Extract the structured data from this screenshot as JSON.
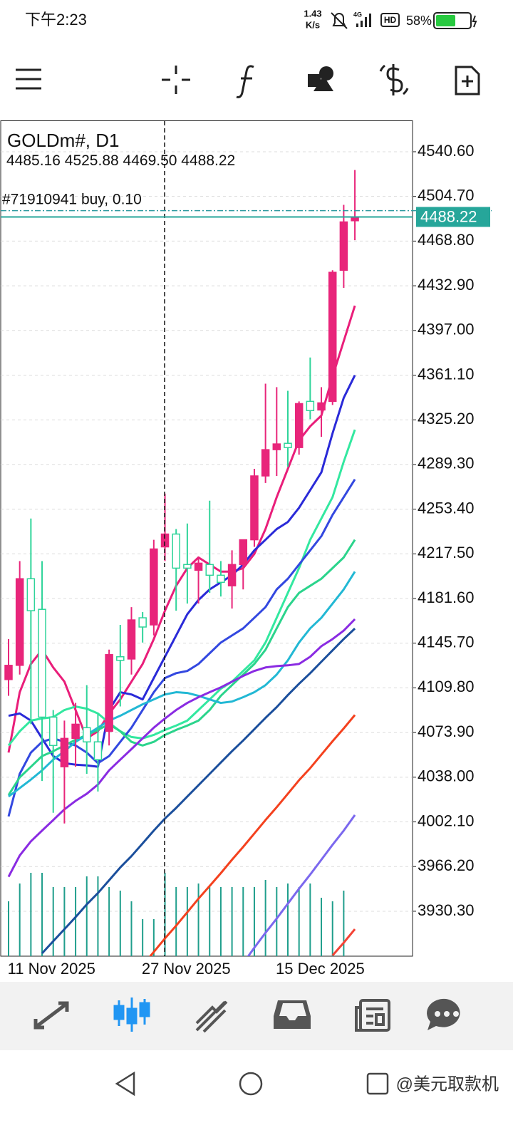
{
  "status_bar": {
    "time": "下午2:23",
    "net_speed": "1.43",
    "net_unit": "K/s",
    "battery": "58%"
  },
  "watermark": "@美元取款机",
  "chart_data": {
    "type": "candlestick",
    "title": "GOLDm#, D1",
    "readout": [
      4485.16,
      4525.88,
      {
        "value": 4469.5,
        "label": "4469.50"
      },
      4488.22
    ],
    "order": {
      "label": "#71910941 buy, 0.10",
      "price": 4493.3,
      "color": "#2e9aa0"
    },
    "last_price": 4488.22,
    "price_color": "#26a69a",
    "categories": [
      null,
      "11 Nov 2025",
      null,
      null,
      null,
      null,
      null,
      null,
      null,
      null,
      null,
      null,
      null,
      "27 Nov 2025",
      null,
      null,
      null,
      null,
      null,
      null,
      null,
      null,
      null,
      null,
      null,
      "15 Dec 2025",
      null,
      null,
      null,
      null,
      null,
      null
    ],
    "open": [
      4116.5,
      4127.9,
      4197.5,
      4172.9,
      4086.3,
      4046.4,
      4069.2,
      4077.8,
      4066.4,
      4074.9,
      4134.8,
      4133.0,
      4166.1,
      4160.4,
      4223.1,
      4233.4,
      4208.9,
      4204.3,
      4208.9,
      4200.3,
      4191.8,
      4208.9,
      4228.8,
      4280.1,
      4301.2,
      4306.3,
      4302.9,
      4340.0,
      4333.1,
      4340.0,
      4445.4,
      4485.16
    ],
    "high": [
      4149.0,
      4211.7,
      4245.9,
      4211.7,
      4092.0,
      4083.5,
      4097.7,
      4112.0,
      4089.2,
      4140.5,
      4160.4,
      4174.7,
      4170.7,
      4228.8,
      4265.9,
      4237.4,
      4241.9,
      4214.6,
      4260.2,
      4211.7,
      4220.3,
      4228.8,
      4285.8,
      4354.2,
      4351.4,
      4348.5,
      4340.0,
      4375.3,
      4351.4,
      4445.4,
      4497.9,
      4525.88
    ],
    "low": [
      4103.4,
      4120.5,
      4080.6,
      4035.0,
      4009.4,
      4000.8,
      4046.4,
      4040.7,
      4026.5,
      4063.5,
      4094.9,
      4120.5,
      4146.2,
      4151.9,
      4211.7,
      4171.8,
      4177.5,
      4177.5,
      4186.1,
      4183.2,
      4173.5,
      4188.9,
      4223.1,
      4274.4,
      4280.1,
      4287.5,
      4297.2,
      4325.7,
      4311.5,
      4337.1,
      4431.2,
      4469.5
    ],
    "close": [
      4127.9,
      4197.5,
      4171.8,
      4086.3,
      4063.5,
      4069.2,
      4080.6,
      4066.4,
      4052.1,
      4136.5,
      4131.9,
      4164.4,
      4158.7,
      4221.4,
      4233.4,
      4206.0,
      4206.0,
      4210.0,
      4200.3,
      4194.6,
      4208.9,
      4228.8,
      4280.1,
      4301.2,
      4305.8,
      4302.9,
      4338.2,
      4332.6,
      4338.8,
      4443.7,
      4484.2,
      4488.22
    ],
    "up_color": "#e8257a",
    "down_color": "#2fd49a",
    "series": [
      {
        "color": "#e91e7a",
        "values": [
          4057.8,
          4106.3,
          4129.0,
          4140.4,
          4126.2,
          4114.8,
          4092.0,
          4069.2,
          4074.9,
          4089.2,
          4100.5,
          4114.8,
          4129.0,
          4149.0,
          4171.8,
          4191.8,
          4206.0,
          4214.6,
          4208.9,
          4203.2,
          4203.2,
          4206.0,
          4217.4,
          4237.4,
          4263.0,
          4285.8,
          4308.6,
          4320.0,
          4328.6,
          4359.9,
          4388.4,
          4416.9
        ]
      },
      {
        "color": "#2a2ad8",
        "values": [
          4087.4,
          4089.2,
          4083.5,
          4069.2,
          4055.0,
          4049.3,
          4048.1,
          4047.5,
          4046.4,
          4092.0,
          4106.3,
          4104.5,
          4100.5,
          4117.7,
          4134.8,
          4151.9,
          4169.0,
          4180.4,
          4188.9,
          4194.6,
          4200.3,
          4208.9,
          4220.3,
          4228.8,
          4237.4,
          4243.1,
          4254.5,
          4268.7,
          4283.0,
          4314.3,
          4342.8,
          4361.0
        ]
      },
      {
        "color": "#33e8a0",
        "values": [
          4063.5,
          4074.9,
          4083.5,
          4085.2,
          4086.3,
          4092.0,
          4094.8,
          4093.1,
          4089.2,
          4081.7,
          4074.9,
          4070.3,
          4069.2,
          4072.0,
          4076.0,
          4079.5,
          4083.5,
          4092.0,
          4100.5,
          4109.1,
          4114.8,
          4123.4,
          4131.9,
          4146.2,
          4166.1,
          4186.1,
          4206.0,
          4228.8,
          4245.9,
          4263.0,
          4291.5,
          4317.2
        ]
      },
      {
        "color": "#3348e0",
        "values": [
          4006.5,
          4040.7,
          4057.8,
          4066.4,
          4069.2,
          4066.4,
          4063.5,
          4057.8,
          4049.3,
          4055.0,
          4066.4,
          4077.8,
          4092.0,
          4106.3,
          4117.7,
          4121.6,
          4123.4,
          4129.0,
          4137.6,
          4146.2,
          4151.9,
          4157.6,
          4166.1,
          4174.7,
          4188.9,
          4197.5,
          4208.9,
          4220.3,
          4231.7,
          4248.8,
          4263.0,
          4277.3
        ]
      },
      {
        "color": "#2bd48c",
        "values": [
          4023.6,
          4037.9,
          4046.4,
          4055.0,
          4058.9,
          4063.5,
          4068.1,
          4072.0,
          4076.0,
          4080.6,
          4074.9,
          4066.4,
          4063.5,
          4066.4,
          4072.0,
          4076.0,
          4079.5,
          4083.5,
          4092.0,
          4103.4,
          4112.0,
          4120.5,
          4129.0,
          4140.4,
          4157.6,
          4174.7,
          4186.1,
          4191.8,
          4197.5,
          4206.0,
          4214.6,
          4228.8
        ]
      },
      {
        "color": "#22b8d4",
        "values": [
          4022.5,
          4029.3,
          4036.1,
          4043.5,
          4052.1,
          4058.9,
          4066.4,
          4072.0,
          4077.8,
          4083.5,
          4087.4,
          4092.0,
          4096.6,
          4100.5,
          4104.5,
          4106.3,
          4105.7,
          4103.4,
          4100.5,
          4097.7,
          4098.8,
          4102.3,
          4106.3,
          4112.0,
          4120.5,
          4131.9,
          4146.2,
          4157.6,
          4166.1,
          4177.5,
          4188.9,
          4203.2
        ]
      },
      {
        "color": "#8a2be2",
        "values": [
          3958.0,
          3975.1,
          3986.5,
          3995.1,
          4003.6,
          4012.2,
          4019.0,
          4024.7,
          4032.1,
          4043.5,
          4052.1,
          4060.6,
          4069.2,
          4077.8,
          4085.2,
          4092.0,
          4097.7,
          4102.3,
          4106.3,
          4110.2,
          4114.8,
          4119.4,
          4123.4,
          4126.2,
          4127.3,
          4127.9,
          4129.0,
          4134.8,
          4143.3,
          4149.0,
          4155.8,
          4165.0
        ]
      },
      {
        "color": "#1b4f9c",
        "values": [
          null,
          null,
          null,
          3896.5,
          3906.2,
          3915.9,
          3925.6,
          3935.8,
          3944.9,
          3955.2,
          3965.5,
          3974.6,
          3984.8,
          3995.1,
          4004.8,
          4013.3,
          4022.5,
          4031.6,
          4040.7,
          4049.8,
          4058.9,
          4067.5,
          4076.6,
          4085.7,
          4094.3,
          4104.0,
          4113.1,
          4121.6,
          4130.8,
          4139.9,
          4149.0,
          4157.5
        ]
      },
      {
        "color": "#f4411e",
        "values": [
          null,
          null,
          null,
          null,
          null,
          null,
          null,
          null,
          null,
          null,
          null,
          null,
          3886.8,
          3897.6,
          3908.5,
          3918.7,
          3929.5,
          3940.4,
          3950.6,
          3960.9,
          3971.7,
          3982.0,
          3992.8,
          4003.6,
          4013.9,
          4024.7,
          4035.6,
          4045.3,
          4056.1,
          4066.9,
          4077.2,
          4088.0
        ]
      },
      {
        "color": "#7b68ee",
        "values": [
          null,
          null,
          null,
          null,
          null,
          null,
          null,
          null,
          null,
          null,
          null,
          null,
          null,
          null,
          null,
          null,
          null,
          null,
          null,
          null,
          null,
          3888.5,
          3901.0,
          3913.0,
          3924.4,
          3936.4,
          3948.4,
          3959.8,
          3971.7,
          3983.7,
          3995.1,
          4007.6
        ]
      },
      {
        "color": "#f44336",
        "values": [
          null,
          null,
          null,
          null,
          null,
          null,
          null,
          null,
          null,
          null,
          null,
          null,
          null,
          null,
          null,
          null,
          null,
          null,
          null,
          null,
          null,
          null,
          null,
          null,
          null,
          null,
          null,
          null,
          null,
          3894.8,
          3905.0,
          3915.9
        ]
      }
    ],
    "volumes": [
      77000,
      102000,
      117000,
      117000,
      97000,
      97000,
      97000,
      112000,
      112000,
      97000,
      92000,
      77000,
      52000,
      52000,
      117000,
      97000,
      97000,
      102000,
      97000,
      97000,
      97000,
      97000,
      97000,
      107000,
      97000,
      102000,
      97000,
      102000,
      82000,
      77000,
      92000,
      null
    ],
    "volume_ylim": [
      0,
      150000
    ],
    "volume_color": "#1f9e8c",
    "ylim": [
      3894.2,
      4565.2
    ],
    "yticks": [
      {
        "value": 4540.6,
        "label": "4540.60"
      },
      {
        "value": 4504.7,
        "label": "4504.70"
      },
      {
        "value": 4468.8,
        "label": "4468.80"
      },
      {
        "value": 4432.9,
        "label": "4432.90"
      },
      {
        "value": 4397.0,
        "label": "4397.00"
      },
      {
        "value": 4361.1,
        "label": "4361.10"
      },
      {
        "value": 4325.2,
        "label": "4325.20"
      },
      {
        "value": 4289.3,
        "label": "4289.30"
      },
      {
        "value": 4253.4,
        "label": "4253.40"
      },
      {
        "value": 4217.5,
        "label": "4217.50"
      },
      {
        "value": 4181.6,
        "label": "4181.60"
      },
      {
        "value": 4145.7,
        "label": "4145.70"
      },
      {
        "value": 4109.8,
        "label": "4109.80"
      },
      {
        "value": 4073.9,
        "label": "4073.90"
      },
      {
        "value": 4038.0,
        "label": "4038.00"
      },
      {
        "value": 4002.1,
        "label": "4002.10"
      },
      {
        "value": 3966.2,
        "label": "3966.20"
      },
      {
        "value": 3930.3,
        "label": "3930.30"
      }
    ],
    "grid": true
  }
}
